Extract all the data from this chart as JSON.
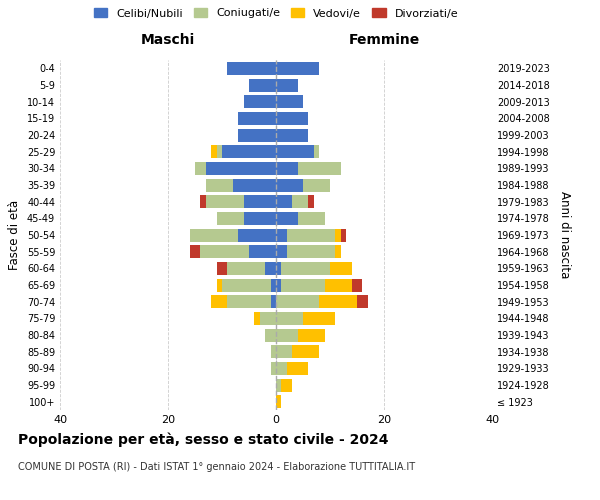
{
  "age_groups": [
    "100+",
    "95-99",
    "90-94",
    "85-89",
    "80-84",
    "75-79",
    "70-74",
    "65-69",
    "60-64",
    "55-59",
    "50-54",
    "45-49",
    "40-44",
    "35-39",
    "30-34",
    "25-29",
    "20-24",
    "15-19",
    "10-14",
    "5-9",
    "0-4"
  ],
  "birth_years": [
    "≤ 1923",
    "1924-1928",
    "1929-1933",
    "1934-1938",
    "1939-1943",
    "1944-1948",
    "1949-1953",
    "1954-1958",
    "1959-1963",
    "1964-1968",
    "1969-1973",
    "1974-1978",
    "1979-1983",
    "1984-1988",
    "1989-1993",
    "1994-1998",
    "1999-2003",
    "2004-2008",
    "2009-2013",
    "2014-2018",
    "2019-2023"
  ],
  "maschi": {
    "celibi": [
      0,
      0,
      0,
      0,
      0,
      0,
      1,
      1,
      2,
      5,
      7,
      6,
      6,
      8,
      13,
      10,
      7,
      7,
      6,
      5,
      9
    ],
    "coniugati": [
      0,
      0,
      1,
      1,
      2,
      3,
      8,
      9,
      7,
      9,
      9,
      5,
      7,
      5,
      2,
      1,
      0,
      0,
      0,
      0,
      0
    ],
    "vedovi": [
      0,
      0,
      0,
      0,
      0,
      1,
      3,
      1,
      0,
      0,
      0,
      0,
      0,
      0,
      0,
      1,
      0,
      0,
      0,
      0,
      0
    ],
    "divorziati": [
      0,
      0,
      0,
      0,
      0,
      0,
      0,
      0,
      2,
      2,
      0,
      0,
      1,
      0,
      0,
      0,
      0,
      0,
      0,
      0,
      0
    ]
  },
  "femmine": {
    "nubili": [
      0,
      0,
      0,
      0,
      0,
      0,
      0,
      1,
      1,
      2,
      2,
      4,
      3,
      5,
      4,
      7,
      6,
      6,
      5,
      4,
      8
    ],
    "coniugate": [
      0,
      1,
      2,
      3,
      4,
      5,
      8,
      8,
      9,
      9,
      9,
      5,
      3,
      5,
      8,
      1,
      0,
      0,
      0,
      0,
      0
    ],
    "vedove": [
      1,
      2,
      4,
      5,
      5,
      6,
      7,
      5,
      4,
      1,
      1,
      0,
      0,
      0,
      0,
      0,
      0,
      0,
      0,
      0,
      0
    ],
    "divorziate": [
      0,
      0,
      0,
      0,
      0,
      0,
      2,
      2,
      0,
      0,
      1,
      0,
      1,
      0,
      0,
      0,
      0,
      0,
      0,
      0,
      0
    ]
  },
  "colors": {
    "celibi": "#4472c4",
    "coniugati": "#b5c990",
    "vedovi": "#ffc000",
    "divorziati": "#c0392b"
  },
  "xlim": 40,
  "title": "Popolazione per età, sesso e stato civile - 2024",
  "subtitle": "COMUNE DI POSTA (RI) - Dati ISTAT 1° gennaio 2024 - Elaborazione TUTTITALIA.IT",
  "xlabel_left": "Maschi",
  "xlabel_right": "Femmine",
  "ylabel_left": "Fasce di età",
  "ylabel_right": "Anni di nascita",
  "legend_labels": [
    "Celibi/Nubili",
    "Coniugati/e",
    "Vedovi/e",
    "Divorziati/e"
  ],
  "bg_color": "#ffffff",
  "grid_color": "#cccccc"
}
